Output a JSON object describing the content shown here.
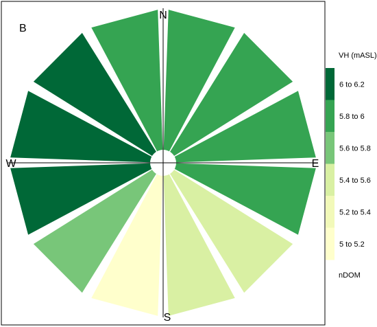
{
  "chart_data": {
    "type": "rose",
    "panel_label": "B",
    "direction_labels": {
      "north": "N",
      "east": "E",
      "south": "S",
      "west": "W"
    },
    "sectors": [
      {
        "direction": "N",
        "class_index": 4
      },
      {
        "direction": "NNE",
        "class_index": 4
      },
      {
        "direction": "ENE",
        "class_index": 4
      },
      {
        "direction": "E",
        "class_index": 4
      },
      {
        "direction": "ESE",
        "class_index": 2
      },
      {
        "direction": "SSE",
        "class_index": 2
      },
      {
        "direction": "S",
        "class_index": 0
      },
      {
        "direction": "SSW",
        "class_index": 3
      },
      {
        "direction": "WSW",
        "class_index": 5
      },
      {
        "direction": "W",
        "class_index": 5
      },
      {
        "direction": "WNW",
        "class_index": 5
      },
      {
        "direction": "NNW",
        "class_index": 4
      }
    ],
    "legend": {
      "title": "VH (mASL)",
      "subtitle": "nDOM",
      "classes": [
        {
          "label": "5 to 5.2",
          "color": "#ffffcc"
        },
        {
          "label": "5.2 to 5.4",
          "color": "#f2f9b9"
        },
        {
          "label": "5.4 to 5.6",
          "color": "#d9f0a3"
        },
        {
          "label": "5.6 to 5.8",
          "color": "#78c679"
        },
        {
          "label": "5.8 to 6",
          "color": "#35a452"
        },
        {
          "label": "6 to 6.2",
          "color": "#006837"
        }
      ]
    }
  }
}
